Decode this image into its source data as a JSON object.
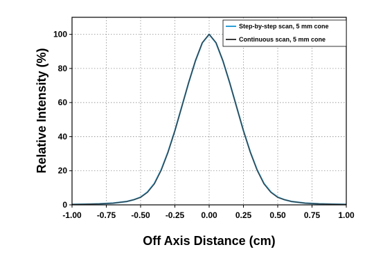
{
  "chart_data": {
    "type": "line",
    "xlabel": "Off Axis Distance (cm)",
    "ylabel": "Relative Intensity (%)",
    "xlim": [
      -1.0,
      1.0
    ],
    "ylim": [
      0,
      110
    ],
    "xticks": [
      -1.0,
      -0.75,
      -0.5,
      -0.25,
      0.0,
      0.25,
      0.5,
      0.75,
      1.0
    ],
    "xtick_labels": [
      "-1.00",
      "-0.75",
      "-0.50",
      "-0.25",
      "0.00",
      "0.25",
      "0.50",
      "0.75",
      "1.00"
    ],
    "yticks": [
      0,
      20,
      40,
      60,
      80,
      100
    ],
    "ytick_labels": [
      "0",
      "20",
      "40",
      "60",
      "80",
      "100"
    ],
    "grid": true,
    "legend_position": "top-right",
    "series": [
      {
        "name": "Step-by-step scan, 5 mm cone",
        "color": "#2a9fd6",
        "x": [
          -1.0,
          -0.9,
          -0.8,
          -0.7,
          -0.6,
          -0.55,
          -0.5,
          -0.45,
          -0.4,
          -0.35,
          -0.3,
          -0.25,
          -0.2,
          -0.15,
          -0.1,
          -0.05,
          0.0,
          0.05,
          0.1,
          0.15,
          0.2,
          0.25,
          0.3,
          0.35,
          0.4,
          0.45,
          0.5,
          0.55,
          0.6,
          0.7,
          0.8,
          0.9,
          1.0
        ],
        "y": [
          0.3,
          0.4,
          0.6,
          1.0,
          2.0,
          3.0,
          4.5,
          7.5,
          12.5,
          20.5,
          31.0,
          43.5,
          57.5,
          71.5,
          84.5,
          95.0,
          100.0,
          95.0,
          84.5,
          71.5,
          57.5,
          43.5,
          31.0,
          20.5,
          12.5,
          7.5,
          4.5,
          3.0,
          2.0,
          1.0,
          0.6,
          0.4,
          0.3
        ]
      },
      {
        "name": "Continuous scan, 5 mm cone",
        "color": "#3a3a3a",
        "x": [
          -1.0,
          -0.9,
          -0.8,
          -0.7,
          -0.6,
          -0.55,
          -0.5,
          -0.45,
          -0.4,
          -0.35,
          -0.3,
          -0.25,
          -0.2,
          -0.15,
          -0.1,
          -0.05,
          0.0,
          0.05,
          0.1,
          0.15,
          0.2,
          0.25,
          0.3,
          0.35,
          0.4,
          0.45,
          0.5,
          0.55,
          0.6,
          0.7,
          0.8,
          0.9,
          1.0
        ],
        "y": [
          0.3,
          0.4,
          0.6,
          1.0,
          2.0,
          3.0,
          4.4,
          7.3,
          12.2,
          20.2,
          30.8,
          43.4,
          57.4,
          71.6,
          84.6,
          95.2,
          100.0,
          95.2,
          84.6,
          71.6,
          57.4,
          43.4,
          30.8,
          20.2,
          12.2,
          7.3,
          4.4,
          3.0,
          2.0,
          1.0,
          0.6,
          0.4,
          0.3
        ]
      }
    ]
  }
}
